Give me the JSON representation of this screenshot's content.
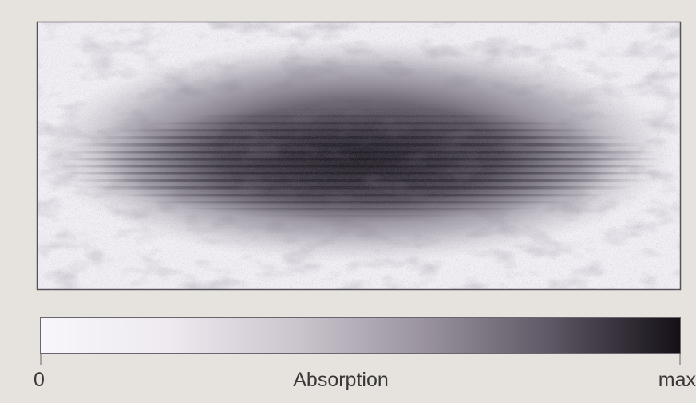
{
  "colorbar": {
    "min_label": "0",
    "label": "Absorption",
    "max_label": "max"
  }
}
